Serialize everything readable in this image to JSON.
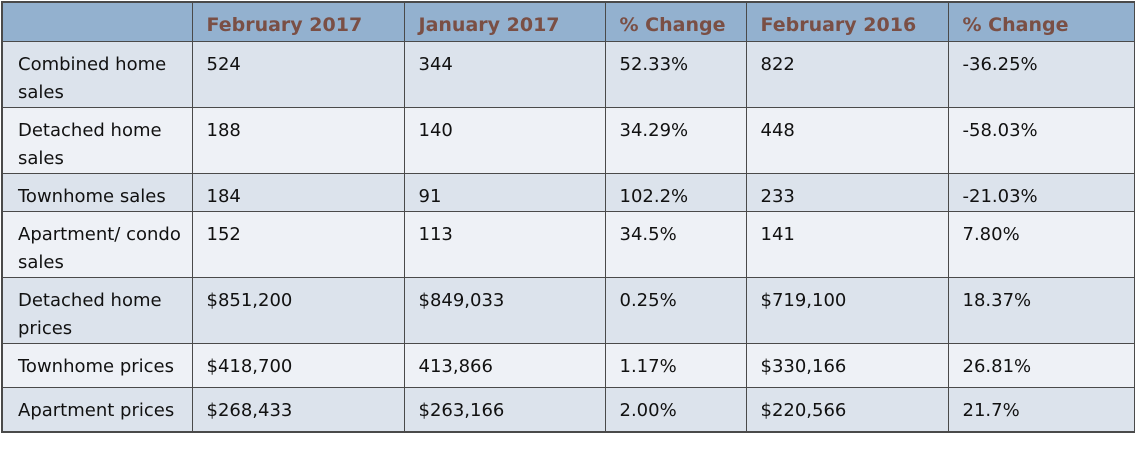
{
  "table": {
    "headers": [
      "",
      "February 2017",
      "January 2017",
      "% Change",
      "February 2016",
      "% Change"
    ],
    "rows": [
      [
        "Combined home sales",
        "524",
        "344",
        "52.33%",
        "822",
        "-36.25%"
      ],
      [
        "Detached home sales",
        "188",
        "140",
        "34.29%",
        "448",
        "-58.03%"
      ],
      [
        "Townhome sales",
        "184",
        "91",
        "102.2%",
        "233",
        "-21.03%"
      ],
      [
        "Apartment/ condo sales",
        "152",
        "113",
        "34.5%",
        "141",
        "7.80%"
      ],
      [
        "Detached home prices",
        "$851,200",
        "$849,033",
        "0.25%",
        "$719,100",
        "18.37%"
      ],
      [
        "Townhome prices",
        "$418,700",
        "413,866",
        "1.17%",
        "$330,166",
        "26.81%"
      ],
      [
        "Apartment prices",
        "$268,433",
        "$263,166",
        "2.00%",
        "$220,566",
        "21.7%"
      ]
    ]
  },
  "colors": {
    "header_bg": "#93b1cf",
    "header_text": "#7a4f45",
    "row_dark": "#dce3ec",
    "row_light": "#eef1f6",
    "border": "#4a4a4a"
  }
}
